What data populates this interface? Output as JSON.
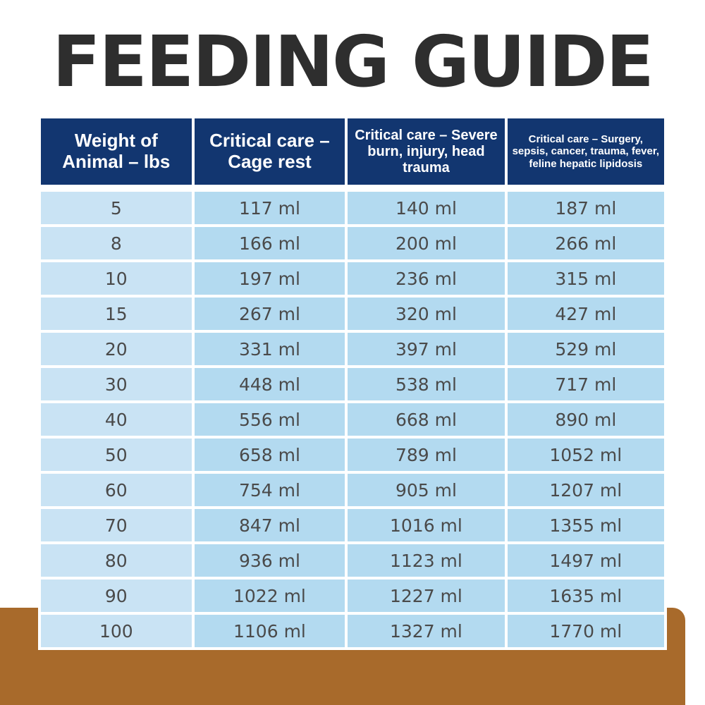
{
  "title": "FEEDING GUIDE",
  "colors": {
    "header_bg": "#123670",
    "header_text": "#ffffff",
    "first_column_bg": "#c9e3f4",
    "cell_bg": "#b3daf0",
    "cell_text": "#4a4a4a",
    "title_text": "#2e2e2e",
    "base_brown": "#a86a2b"
  },
  "table": {
    "headers": [
      "Weight of Animal – lbs",
      "Critical care – Cage rest",
      "Critical care – Severe burn, injury, head trauma",
      "Critical care – Surgery, sepsis, cancer, trauma, fever, feline hepatic lipidosis"
    ],
    "rows": [
      [
        "5",
        "117 ml",
        "140 ml",
        "187 ml"
      ],
      [
        "8",
        "166 ml",
        "200 ml",
        "266 ml"
      ],
      [
        "10",
        "197 ml",
        "236 ml",
        "315 ml"
      ],
      [
        "15",
        "267 ml",
        "320 ml",
        "427 ml"
      ],
      [
        "20",
        "331 ml",
        "397 ml",
        "529 ml"
      ],
      [
        "30",
        "448 ml",
        "538 ml",
        "717 ml"
      ],
      [
        "40",
        "556 ml",
        "668 ml",
        "890 ml"
      ],
      [
        "50",
        "658 ml",
        "789 ml",
        "1052 ml"
      ],
      [
        "60",
        "754 ml",
        "905 ml",
        "1207 ml"
      ],
      [
        "70",
        "847 ml",
        "1016 ml",
        "1355 ml"
      ],
      [
        "80",
        "936 ml",
        "1123 ml",
        "1497 ml"
      ],
      [
        "90",
        "1022 ml",
        "1227 ml",
        "1635 ml"
      ],
      [
        "100",
        "1106 ml",
        "1327 ml",
        "1770 ml"
      ]
    ]
  }
}
